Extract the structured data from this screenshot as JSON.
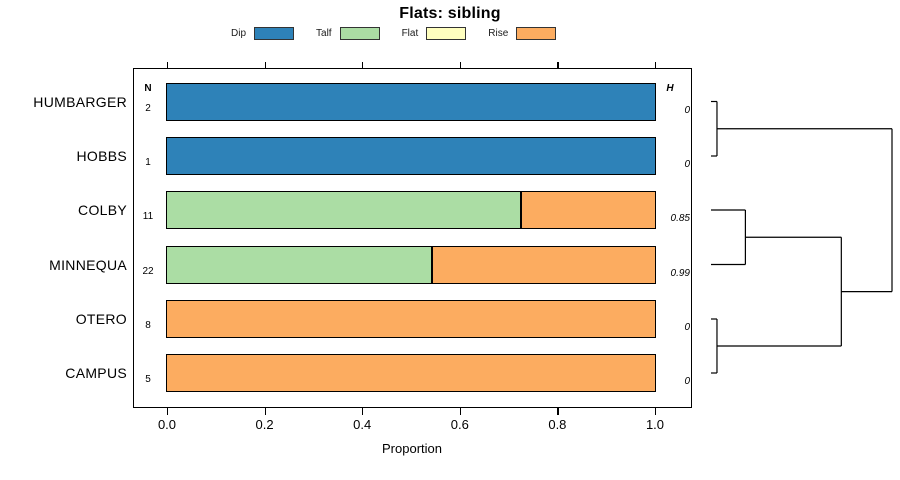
{
  "title": "Flats: sibling",
  "chart_data": {
    "type": "bar",
    "stacked": true,
    "orientation": "horizontal",
    "title": "Flats: sibling",
    "xlabel": "Proportion",
    "xlim": [
      0,
      1
    ],
    "x_ticks": [
      {
        "value": 0.0,
        "label": "0.0"
      },
      {
        "value": 0.2,
        "label": "0.2"
      },
      {
        "value": 0.4,
        "label": "0.4"
      },
      {
        "value": 0.6,
        "label": "0.6"
      },
      {
        "value": 0.8,
        "label": "0.8"
      },
      {
        "value": 1.0,
        "label": "1.0"
      }
    ],
    "legend": {
      "position": "top",
      "items": [
        {
          "label": "Dip",
          "color": "#2E82B8"
        },
        {
          "label": "Talf",
          "color": "#ABDDA4"
        },
        {
          "label": "Flat",
          "color": "#FFFFBF"
        },
        {
          "label": "Rise",
          "color": "#FCAC60"
        }
      ]
    },
    "columns": {
      "n_header": "N",
      "h_header": "H"
    },
    "rows": [
      {
        "label": "HUMBARGER",
        "n": "2",
        "h": "0",
        "segments": [
          {
            "category": "Dip",
            "value": 1.0
          }
        ]
      },
      {
        "label": "HOBBS",
        "n": "1",
        "h": "0",
        "segments": [
          {
            "category": "Dip",
            "value": 1.0
          }
        ]
      },
      {
        "label": "COLBY",
        "n": "11",
        "h": "0.85",
        "segments": [
          {
            "category": "Talf",
            "value": 0.727
          },
          {
            "category": "Rise",
            "value": 0.273
          }
        ]
      },
      {
        "label": "MINNEQUA",
        "n": "22",
        "h": "0.99",
        "segments": [
          {
            "category": "Talf",
            "value": 0.545
          },
          {
            "category": "Rise",
            "value": 0.455
          }
        ]
      },
      {
        "label": "OTERO",
        "n": "8",
        "h": "0",
        "segments": [
          {
            "category": "Rise",
            "value": 1.0
          }
        ]
      },
      {
        "label": "CAMPUS",
        "n": "5",
        "h": "0",
        "segments": [
          {
            "category": "Rise",
            "value": 1.0
          }
        ]
      }
    ],
    "colors": {
      "Dip": "#2E82B8",
      "Talf": "#ABDDA4",
      "Flat": "#FFFFBF",
      "Rise": "#FCAC60"
    },
    "dendrogram": {
      "side": "right",
      "merges": [
        {
          "a": {
            "leaf": 0
          },
          "b": {
            "leaf": 1
          },
          "height": 0.033
        },
        {
          "a": {
            "leaf": 2
          },
          "b": {
            "leaf": 3
          },
          "height": 0.19
        },
        {
          "a": {
            "leaf": 4
          },
          "b": {
            "leaf": 5
          },
          "height": 0.033
        },
        {
          "a": {
            "merge": 1
          },
          "b": {
            "merge": 2
          },
          "height": 0.72
        },
        {
          "a": {
            "merge": 0
          },
          "b": {
            "merge": 3
          },
          "height": 1.0
        }
      ]
    }
  }
}
